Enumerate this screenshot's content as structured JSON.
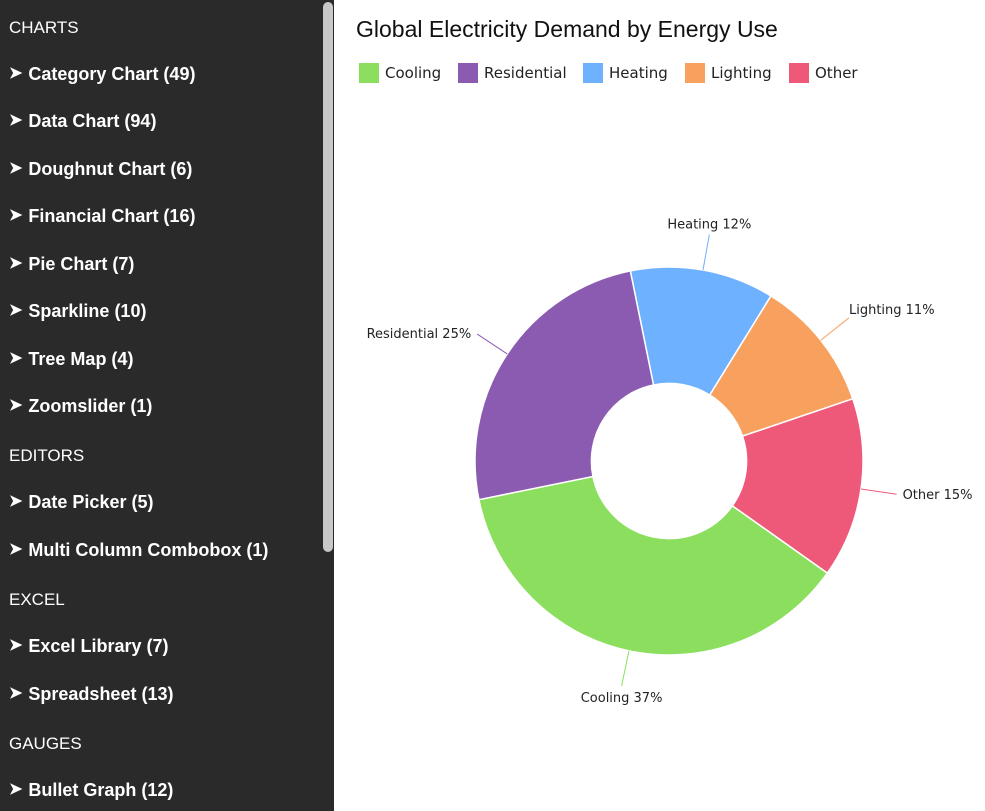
{
  "sidebar": {
    "sections": [
      {
        "title": "CHARTS",
        "items": [
          {
            "label": "Category Chart (49)"
          },
          {
            "label": "Data Chart (94)"
          },
          {
            "label": "Doughnut Chart (6)"
          },
          {
            "label": "Financial Chart (16)"
          },
          {
            "label": "Pie Chart (7)"
          },
          {
            "label": "Sparkline (10)"
          },
          {
            "label": "Tree Map (4)"
          },
          {
            "label": "Zoomslider (1)"
          }
        ]
      },
      {
        "title": "EDITORS",
        "items": [
          {
            "label": "Date Picker (5)"
          },
          {
            "label": "Multi Column Combobox (1)"
          }
        ]
      },
      {
        "title": "EXCEL",
        "items": [
          {
            "label": "Excel Library (7)"
          },
          {
            "label": "Spreadsheet (13)"
          }
        ]
      },
      {
        "title": "GAUGES",
        "items": [
          {
            "label": "Bullet Graph (12)"
          }
        ]
      }
    ],
    "arrow_glyph": "➤"
  },
  "chart_data": {
    "type": "pie",
    "title": "Global Electricity Demand by Energy Use",
    "inner_radius_ratio": 0.4,
    "legend_position": "top-left",
    "slices": [
      {
        "name": "Cooling",
        "value": 37,
        "color": "#8bde5e",
        "label": "Cooling 37%"
      },
      {
        "name": "Residential",
        "value": 25,
        "color": "#8b5bb1",
        "label": "Residential 25%"
      },
      {
        "name": "Heating",
        "value": 12,
        "color": "#6db1ff",
        "label": "Heating 12%"
      },
      {
        "name": "Lighting",
        "value": 11,
        "color": "#f8a15f",
        "label": "Lighting 11%"
      },
      {
        "name": "Other",
        "value": 15,
        "color": "#ee5879",
        "label": "Other 15%"
      }
    ]
  }
}
